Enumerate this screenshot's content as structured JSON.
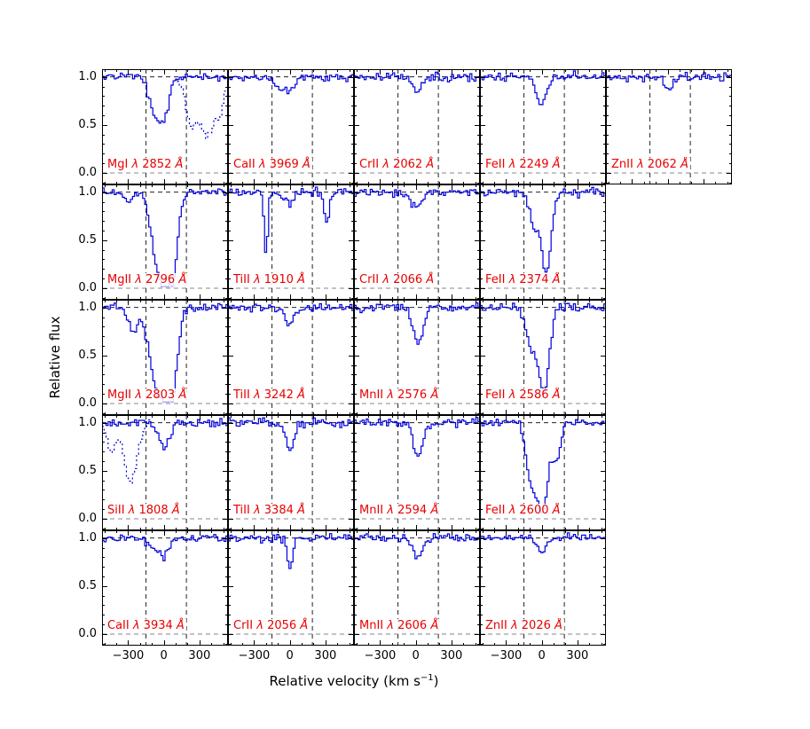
{
  "chart_data": {
    "type": "line",
    "description": "Grid of normalized absorption-line velocity profiles (relative flux vs relative velocity) for metal transitions, blue histogram spectra with dashed integration limits",
    "ylabel": "Relative flux",
    "xlabel": {
      "prefix": "Relative velocity (km s",
      "sup": "−1",
      "suffix": ")"
    },
    "x_range": [
      -520,
      540
    ],
    "y_range": [
      -0.12,
      1.08
    ],
    "xticks": {
      "major": [
        -300,
        0,
        300
      ],
      "labels": [
        "−300",
        "0",
        "300"
      ],
      "minor_step": 100
    },
    "yticks": {
      "major": [
        0,
        0.5,
        1.0
      ],
      "labels": [
        "0.0",
        "0.5",
        "1.0"
      ],
      "minor_step": 0.1
    },
    "integration_window_kms": [
      -150,
      190
    ],
    "continuum_level": 1.0,
    "zero_level": 0.0,
    "lambda_symbol": "λ",
    "unit": "Å",
    "colors": {
      "spectrum": "#0000dd",
      "label": "#e80000",
      "dashed_line": "#222222",
      "zero_line": "#8a8a8a",
      "axis": "#000000"
    },
    "rows": [
      [
        {
          "ion": "MgI",
          "wav": "2852",
          "features": [
            [
              -60,
              0.45,
              55
            ],
            [
              20,
              0.22,
              35
            ]
          ],
          "dotted": {
            "range": [
              110,
              520
            ],
            "features": [
              [
                230,
                0.5,
                45
              ],
              [
                360,
                0.62,
                55
              ],
              [
                470,
                0.35,
                35
              ]
            ]
          }
        },
        {
          "ion": "CaII",
          "wav": "3969",
          "features": [
            [
              -10,
              0.15,
              50
            ],
            [
              -100,
              0.08,
              30
            ]
          ]
        },
        {
          "ion": "CrII",
          "wav": "2062",
          "features": [
            [
              20,
              0.13,
              45
            ]
          ]
        },
        {
          "ion": "FeII",
          "wav": "2249",
          "features": [
            [
              0,
              0.27,
              45
            ]
          ]
        },
        {
          "ion": "ZnII",
          "wav": "2062",
          "features": [
            [
              0,
              0.1,
              45
            ]
          ]
        }
      ],
      [
        {
          "ion": "MgII",
          "wav": "2796",
          "features": [
            [
              -30,
              0.88,
              65
            ],
            [
              70,
              0.75,
              45
            ],
            [
              -300,
              0.12,
              25
            ]
          ]
        },
        {
          "ion": "TiII",
          "wav": "1910",
          "features": [
            [
              -200,
              0.68,
              14
            ],
            [
              310,
              0.3,
              22
            ],
            [
              0,
              0.12,
              40
            ]
          ]
        },
        {
          "ion": "CrII",
          "wav": "2066",
          "features": [
            [
              10,
              0.15,
              45
            ]
          ]
        },
        {
          "ion": "FeII",
          "wav": "2374",
          "features": [
            [
              40,
              0.82,
              40
            ],
            [
              -60,
              0.35,
              40
            ]
          ]
        }
      ],
      [
        {
          "ion": "MgII",
          "wav": "2803",
          "features": [
            [
              -40,
              0.88,
              75
            ],
            [
              70,
              0.72,
              45
            ],
            [
              -260,
              0.25,
              35
            ]
          ]
        },
        {
          "ion": "TiII",
          "wav": "3242",
          "features": [
            [
              0,
              0.16,
              40
            ]
          ]
        },
        {
          "ion": "MnII",
          "wav": "2576",
          "features": [
            [
              20,
              0.4,
              40
            ]
          ]
        },
        {
          "ion": "FeII",
          "wav": "2586",
          "features": [
            [
              20,
              0.85,
              45
            ],
            [
              -90,
              0.4,
              45
            ]
          ]
        }
      ],
      [
        {
          "ion": "SiII",
          "wav": "1808",
          "features": [
            [
              0,
              0.25,
              45
            ]
          ],
          "dotted": {
            "range": [
              -520,
              -110
            ],
            "features": [
              [
                -280,
                0.62,
                55
              ],
              [
                -440,
                0.3,
                35
              ]
            ]
          }
        },
        {
          "ion": "TiII",
          "wav": "3384",
          "features": [
            [
              0,
              0.25,
              38
            ]
          ]
        },
        {
          "ion": "MnII",
          "wav": "2594",
          "features": [
            [
              20,
              0.35,
              40
            ]
          ]
        },
        {
          "ion": "FeII",
          "wav": "2600",
          "features": [
            [
              0,
              0.92,
              55
            ],
            [
              -100,
              0.45,
              35
            ],
            [
              130,
              0.35,
              28
            ]
          ]
        }
      ],
      [
        {
          "ion": "CaII",
          "wav": "3934",
          "features": [
            [
              0,
              0.2,
              45
            ],
            [
              -110,
              0.1,
              35
            ]
          ]
        },
        {
          "ion": "CrII",
          "wav": "2056",
          "features": [
            [
              0,
              0.3,
              22
            ]
          ]
        },
        {
          "ion": "MnII",
          "wav": "2606",
          "features": [
            [
              20,
              0.2,
              40
            ]
          ]
        },
        {
          "ion": "ZnII",
          "wav": "2026",
          "features": [
            [
              0,
              0.15,
              40
            ]
          ]
        }
      ]
    ]
  }
}
